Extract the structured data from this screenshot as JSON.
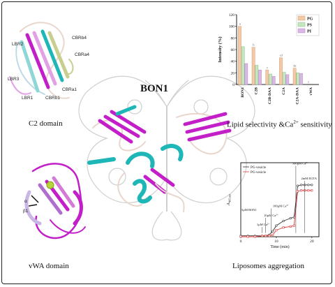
{
  "main_title": "BON1",
  "captions": {
    "c2": "C2 domain",
    "lipid_main": "Lipid selectivity &Ca",
    "lipid_sup": "2+",
    "lipid_tail": " sensitivity",
    "vwa": "vWA domain",
    "lipo": "Liposomes aggregation"
  },
  "c2_labels": {
    "lbr2": "LBR2",
    "cbrb4": "CBRb4",
    "cbra4": "CBRa4",
    "lbr3": "LBR3",
    "cbra1": "CBRa1",
    "lbr1": "LBR1",
    "cbrb1": "CBRb1"
  },
  "vwa_labels": {
    "a1": "α",
    "b1": "β1"
  },
  "colors": {
    "magenta": "#c21fc9",
    "cyan": "#1fb6b8",
    "pg": "#f4c9a8",
    "ps": "#c6e6c2",
    "pi": "#d9b8e3",
    "pg_line": "#e03a3a",
    "ps_line": "#333333"
  },
  "chart_data": [
    {
      "type": "bar",
      "categories": [
        "BON1",
        "C2B",
        "C2B-DAA",
        "C2A",
        "C2A-DAA",
        "vWA"
      ],
      "series": [
        {
          "name": "PG",
          "values": [
            100,
            64,
            25,
            46,
            28,
            0
          ]
        },
        {
          "name": "PS",
          "values": [
            65,
            33,
            18,
            21,
            20,
            0
          ]
        },
        {
          "name": "PI",
          "values": [
            36,
            25,
            14,
            17,
            19,
            0
          ]
        }
      ],
      "sig_labels": [
        "a",
        "b",
        "c",
        "cd",
        "de",
        "f"
      ],
      "ylabel": "Intensity (%)",
      "yticks": [
        0,
        20,
        40,
        60,
        80,
        100,
        120
      ],
      "ylim": [
        0,
        120
      ],
      "legend": "top-right"
    },
    {
      "type": "line",
      "series": [
        {
          "name": "PG-vesicle",
          "x": [
            0,
            2,
            4,
            6,
            7,
            8,
            9,
            10,
            12,
            14,
            15,
            16,
            17,
            18,
            19,
            20
          ],
          "y": [
            0.01,
            0.01,
            0.01,
            0.01,
            0.01,
            0.02,
            0.06,
            0.12,
            0.17,
            0.2,
            0.21,
            0.55,
            0.56,
            0.56,
            0.56,
            0.56
          ]
        },
        {
          "name": "PG-vesicle",
          "x": [
            0,
            2,
            4,
            6,
            7,
            8,
            9,
            10,
            12,
            14,
            15,
            16,
            17,
            18,
            19,
            20
          ],
          "y": [
            0.0,
            0.0,
            0.0,
            0.01,
            0.01,
            0.01,
            0.02,
            0.07,
            0.1,
            0.11,
            0.12,
            0.49,
            0.5,
            0.5,
            0.5,
            0.5
          ]
        }
      ],
      "xlabel": "Time (min)",
      "ylabel": "A",
      "ylabel_sub": "405 nm",
      "xticks": [
        0,
        10,
        20
      ],
      "xlim": [
        0,
        22
      ],
      "ylim": [
        0,
        0.8
      ],
      "annotations": [
        "5µM BON1",
        "1µM Ca",
        "10µM Ca",
        "100µM Ca",
        "500µM Ca",
        "2mM EGTA"
      ]
    }
  ]
}
